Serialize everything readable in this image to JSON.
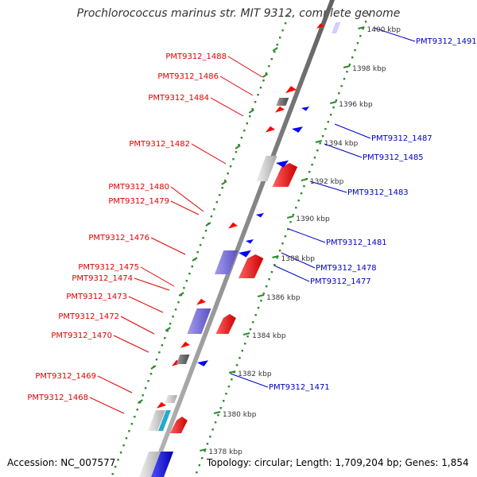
{
  "title": "Prochlorococcus marinus str. MIT 9312, complete genome",
  "footer": {
    "accession": "Accession: NC_007577",
    "summary": "Topology: circular; Length: 1,709,204 bp; Genes: 1,854"
  },
  "colors": {
    "forward_label": "#e00000",
    "reverse_label": "#0000c8",
    "forward_gene": "#ff0000",
    "reverse_gene": "#0000ff",
    "rna_gene": "#7a6fd8",
    "pseudo_gene": "#cccccc",
    "dark_gene": "#666666",
    "teal_gene": "#22aacc",
    "backbone": "#808080",
    "dots": "#2a8a2a"
  },
  "scale_kbp": [
    "1400 kbp",
    "1398 kbp",
    "1396 kbp",
    "1394 kbp",
    "1392 kbp",
    "1390 kbp",
    "1388 kbp",
    "1386 kbp",
    "1384 kbp",
    "1382 kbp",
    "1380 kbp",
    "1378 kbp"
  ],
  "forward_labels": [
    "PMT9312_1488",
    "PMT9312_1486",
    "PMT9312_1484",
    "PMT9312_1482",
    "PMT9312_1480",
    "PMT9312_1479",
    "PMT9312_1476",
    "PMT9312_1475",
    "PMT9312_1474",
    "PMT9312_1473",
    "PMT9312_1472",
    "PMT9312_1470",
    "PMT9312_1469",
    "PMT9312_1468"
  ],
  "reverse_labels": [
    "PMT9312_1491",
    "PMT9312_1487",
    "PMT9312_1485",
    "PMT9312_1483",
    "PMT9312_1481",
    "PMT9312_1478",
    "PMT9312_1477",
    "PMT9312_1471"
  ]
}
